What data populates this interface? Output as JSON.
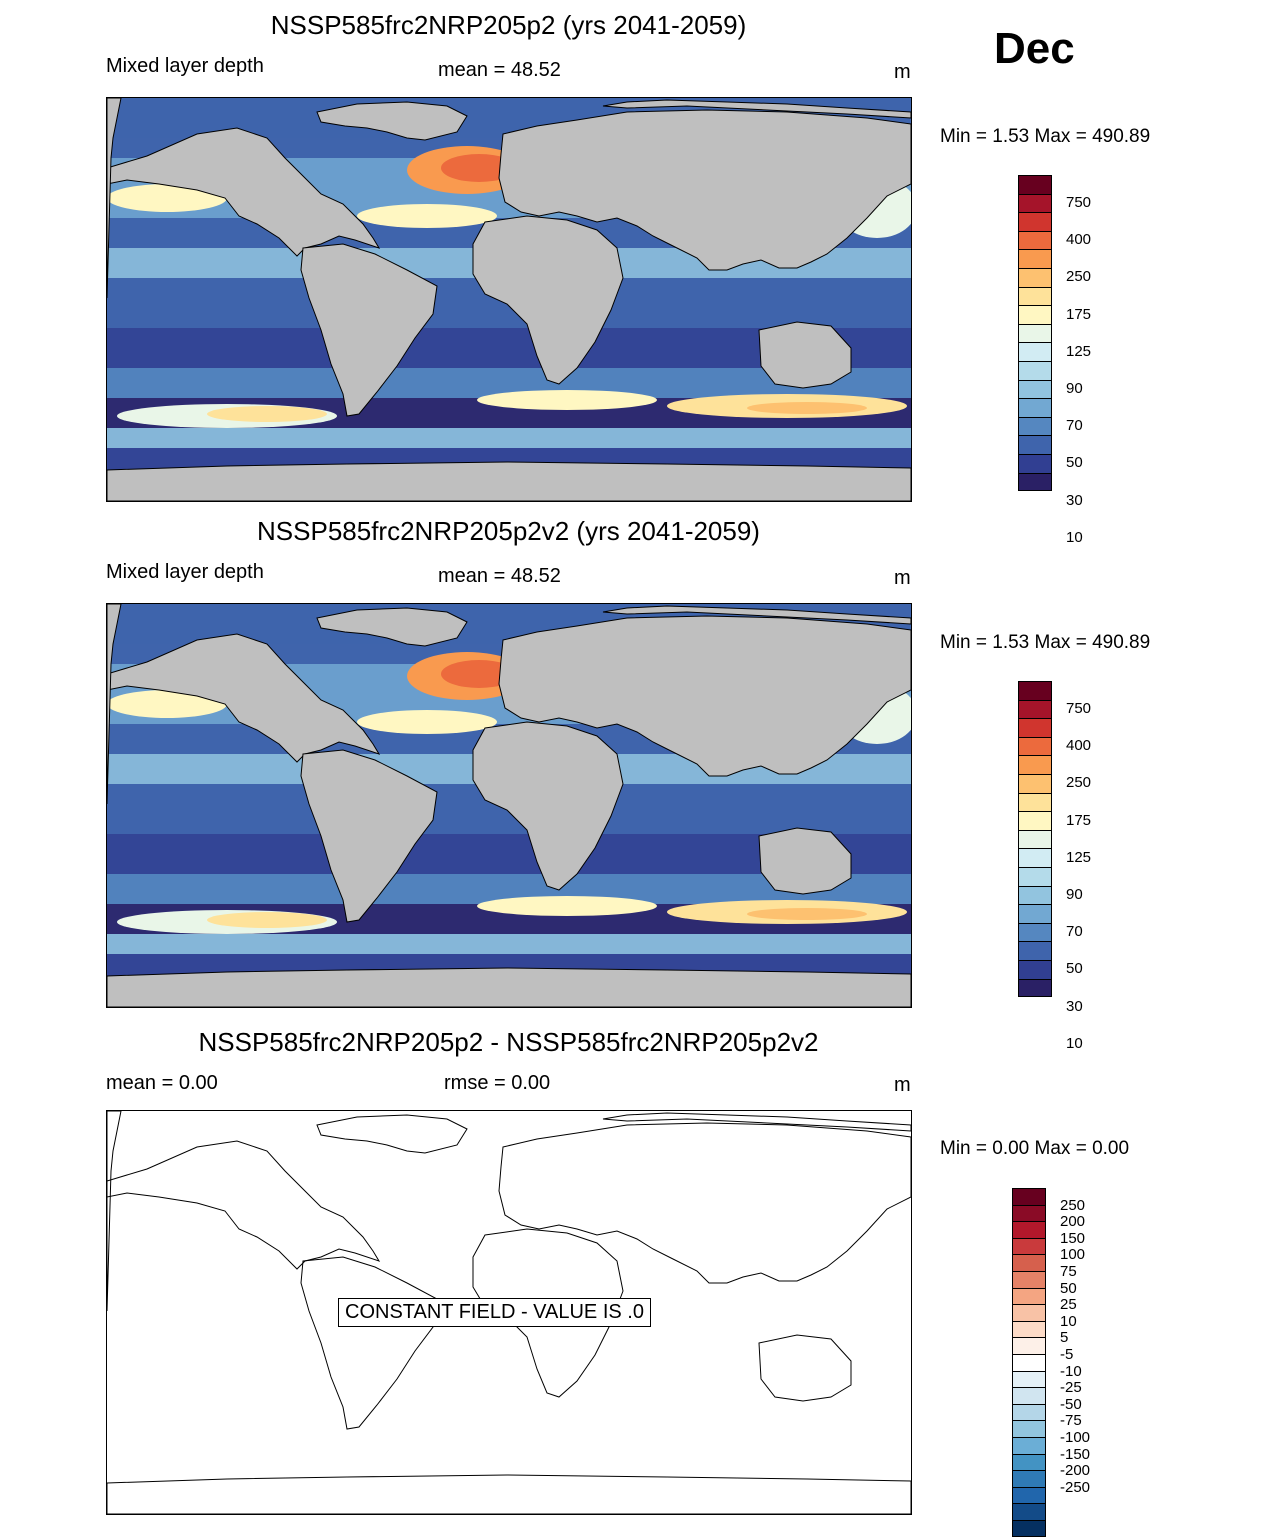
{
  "month": "Dec",
  "panels": [
    {
      "title": "NSSP585frc2NRP205p2 (yrs 2041-2059)",
      "left_label": "Mixed layer depth",
      "center_label": "mean =  48.52",
      "units": "m",
      "minmax": "Min =    1.53 Max = 490.89"
    },
    {
      "title": "NSSP585frc2NRP205p2v2 (yrs 2041-2059)",
      "left_label": "Mixed layer depth",
      "center_label": "mean =  48.52",
      "units": "m",
      "minmax": "Min =    1.53 Max = 490.89"
    },
    {
      "title": "NSSP585frc2NRP205p2 - NSSP585frc2NRP205p2v2",
      "left_label": "mean =    0.00",
      "center_label": "rmse =    0.00",
      "units": "m",
      "minmax": "Min =    0.00 Max =    0.00",
      "constant_field_note": "CONSTANT FIELD - VALUE IS .0"
    }
  ],
  "colorbar_field": {
    "labels": [
      "750",
      "400",
      "250",
      "175",
      "125",
      "90",
      "70",
      "50",
      "30",
      "10"
    ],
    "colors": [
      "#67001f",
      "#a5142a",
      "#d0352e",
      "#ec6a3d",
      "#f99a4f",
      "#fdc170",
      "#fee29a",
      "#fff7c2",
      "#e9f6e8",
      "#d2ecf3",
      "#b4dbea",
      "#92c4df",
      "#72a8d2",
      "#5587c0",
      "#3f64ac",
      "#313f92",
      "#2a2065"
    ]
  },
  "colorbar_diff": {
    "labels": [
      "250",
      "200",
      "150",
      "100",
      "75",
      "50",
      "25",
      "10",
      "5",
      "-5",
      "-10",
      "-25",
      "-50",
      "-75",
      "-100",
      "-150",
      "-200",
      "-250"
    ],
    "colors": [
      "#67001f",
      "#8a0b26",
      "#b2182b",
      "#c93a3c",
      "#d6604d",
      "#e58267",
      "#f4a582",
      "#f8c2a6",
      "#fddbc7",
      "#fdf0e8",
      "#ffffff",
      "#e5f1f7",
      "#d1e5f0",
      "#b4d6e8",
      "#92c5de",
      "#6baed6",
      "#4393c3",
      "#2f7ab5",
      "#2166ac",
      "#134b88",
      "#053061"
    ]
  }
}
